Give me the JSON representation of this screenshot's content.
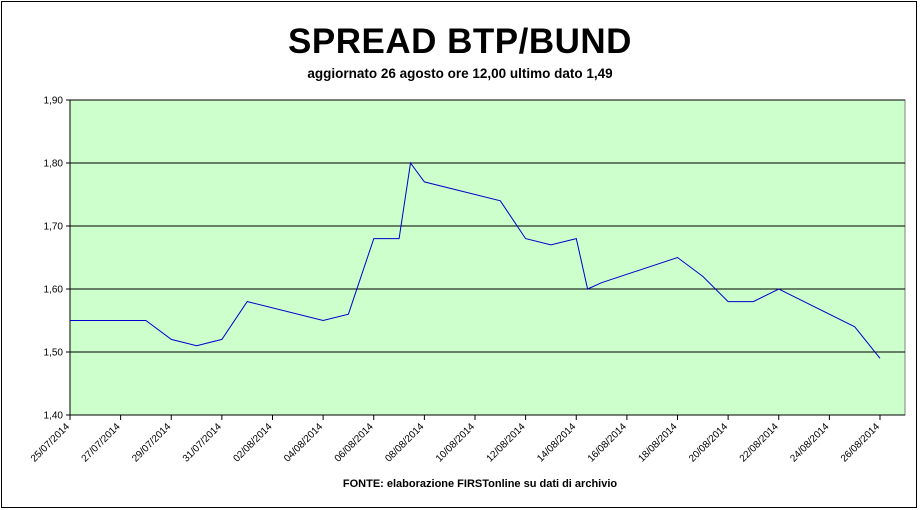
{
  "chart_data": {
    "type": "line",
    "title": "SPREAD BTP/BUND",
    "subtitle": "aggiornato 26 agosto ore 12,00 ultimo dato 1,49",
    "source": "FONTE: elaborazione FIRSTonline su dati di archivio",
    "xlabel": "",
    "ylabel": "",
    "ylim": [
      1.4,
      1.9
    ],
    "y_ticks": [
      "1,40",
      "1,50",
      "1,60",
      "1,70",
      "1,80",
      "1,90"
    ],
    "x_ticks": [
      "25/07/2014",
      "27/07/2014",
      "29/07/2014",
      "31/07/2014",
      "02/08/2014",
      "04/08/2014",
      "06/08/2014",
      "08/08/2014",
      "10/08/2014",
      "12/08/2014",
      "14/08/2014",
      "16/08/2014",
      "18/08/2014",
      "20/08/2014",
      "22/08/2014",
      "24/08/2014",
      "26/08/2014"
    ],
    "grid": "horizontal",
    "plot_background": "#ccffcc",
    "line_color": "#0000cc",
    "series": [
      {
        "x": [
          "25/07/2014",
          "28/07/2014",
          "29/07/2014",
          "30/07/2014",
          "31/07/2014",
          "01/08/2014",
          "04/08/2014",
          "05/08/2014",
          "06/08/2014",
          "06/08/2014",
          "07/08/2014",
          "07/08/2014",
          "08/08/2014",
          "11/08/2014",
          "12/08/2014",
          "13/08/2014",
          "14/08/2014",
          "14/08/2014",
          "15/08/2014",
          "18/08/2014",
          "19/08/2014",
          "20/08/2014",
          "21/08/2014",
          "22/08/2014",
          "25/08/2014",
          "26/08/2014"
        ],
        "values": [
          1.55,
          1.55,
          1.52,
          1.51,
          1.52,
          1.58,
          1.55,
          1.56,
          1.68,
          1.68,
          1.68,
          1.8,
          1.77,
          1.74,
          1.68,
          1.67,
          1.68,
          1.6,
          1.61,
          1.65,
          1.62,
          1.58,
          1.58,
          1.6,
          1.54,
          1.49
        ]
      }
    ]
  }
}
